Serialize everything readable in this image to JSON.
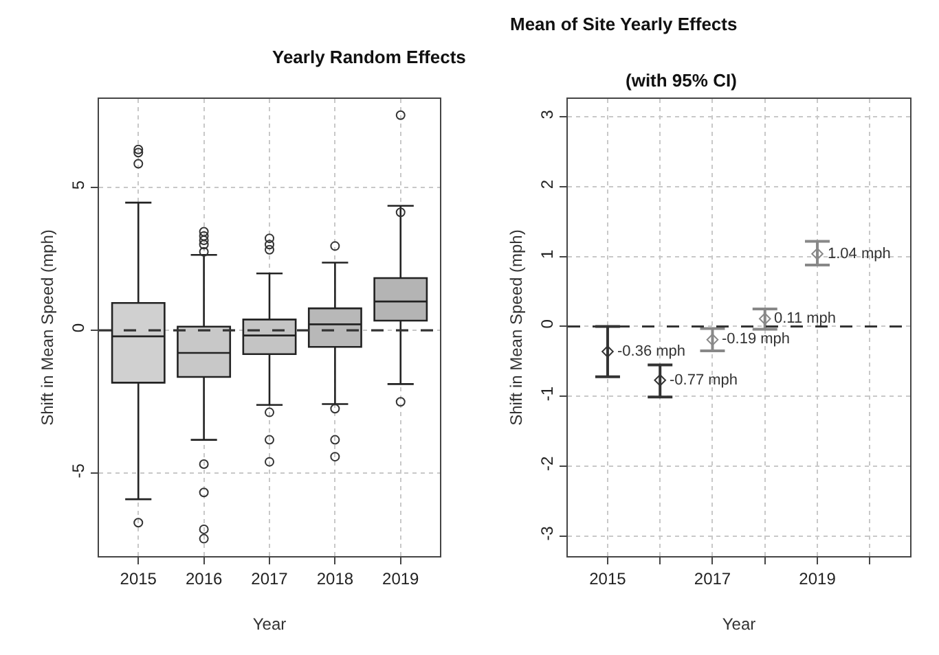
{
  "chart_data": [
    {
      "type": "box",
      "title": "Yearly Random Effects",
      "xlabel": "Year",
      "ylabel": "Shift in Mean Speed (mph)",
      "categories": [
        "2015",
        "2016",
        "2017",
        "2018",
        "2019"
      ],
      "boxes": [
        {
          "low": -5.91,
          "q1": -1.83,
          "median": -0.21,
          "q3": 0.96,
          "high": 4.47,
          "outliers": [
            6.33,
            6.22,
            5.83,
            -6.73
          ]
        },
        {
          "low": -3.83,
          "q1": -1.63,
          "median": -0.79,
          "q3": 0.13,
          "high": 2.64,
          "outliers": [
            3.45,
            3.3,
            3.15,
            3.0,
            2.75,
            -4.68,
            -5.67,
            -6.96,
            -7.29
          ]
        },
        {
          "low": -2.61,
          "q1": -0.83,
          "median": -0.18,
          "q3": 0.38,
          "high": 1.99,
          "outliers": [
            3.22,
            3.0,
            2.82,
            -2.87,
            -3.83,
            -4.6
          ]
        },
        {
          "low": -2.58,
          "q1": -0.58,
          "median": 0.21,
          "q3": 0.77,
          "high": 2.37,
          "outliers": [
            2.95,
            -2.74,
            -3.83,
            -4.42
          ]
        },
        {
          "low": -1.88,
          "q1": 0.34,
          "median": 1.01,
          "q3": 1.83,
          "high": 4.36,
          "outliers": [
            7.53,
            4.13,
            -2.5
          ]
        }
      ],
      "colors": [
        "#d0d0d0",
        "#c8c8c8",
        "#c4c4c4",
        "#b8b8b8",
        "#b4b4b4"
      ],
      "ylim": [
        -7.9,
        8.1
      ],
      "yticks": [
        -5,
        0,
        5
      ],
      "grid": true,
      "ref_lines": [
        {
          "axis": "y",
          "value": 0,
          "line_style": "dashed",
          "color": "#333333"
        }
      ]
    },
    {
      "type": "scatter",
      "title": "Mean of Site Yearly Effects",
      "subtitle": "(with 95% CI)",
      "xlabel": "Year",
      "ylabel": "Shift in Mean Speed (mph)",
      "x": [
        2015,
        2016,
        2017,
        2018,
        2019
      ],
      "values": [
        -0.36,
        -0.77,
        -0.19,
        0.11,
        1.04
      ],
      "errors": [
        [
          -0.72,
          0.0
        ],
        [
          -1.01,
          -0.55
        ],
        [
          -0.35,
          -0.03
        ],
        [
          -0.04,
          0.25
        ],
        [
          0.88,
          1.22
        ]
      ],
      "value_labels": [
        "-0.36 mph",
        "-0.77 mph",
        "-0.19 mph",
        "0.11 mph",
        "1.04 mph"
      ],
      "colors": [
        "#333333",
        "#333333",
        "#888888",
        "#888888",
        "#888888"
      ],
      "marker": "diamond",
      "xlim": [
        2014.24,
        2020.77
      ],
      "xticks": [
        2015,
        {
          "value": 2016,
          "label": null
        },
        2017,
        {
          "value": 2018,
          "label": null
        },
        2019,
        {
          "value": 2020,
          "label": null
        }
      ],
      "ylim": [
        -3.29,
        3.26
      ],
      "yticks": [
        -3,
        -2,
        -1,
        0,
        1,
        2,
        3
      ],
      "grid": true,
      "ref_lines": [
        {
          "axis": "y",
          "value": 0,
          "line_style": "dashed",
          "color": "#333333"
        }
      ]
    }
  ]
}
